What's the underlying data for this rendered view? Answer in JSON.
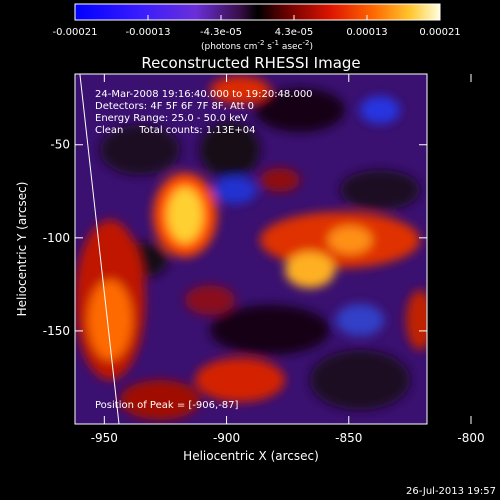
{
  "chart_data": {
    "type": "heatmap",
    "title": "Reconstructed RHESSI Image",
    "xlabel": "Heliocentric X (arcsec)",
    "ylabel": "Heliocentric Y (arcsec)",
    "xlim": [
      -962,
      -818
    ],
    "ylim": [
      -200,
      -12
    ],
    "x_ticks": [
      -950,
      -900,
      -850,
      -800
    ],
    "y_ticks": [
      -50,
      -100,
      -150
    ],
    "colorbar": {
      "min": -0.00021,
      "max": 0.00021,
      "ticks": [
        "-0.00021",
        "-0.00013",
        "-4.3e-05",
        "4.3e-05",
        "0.00013",
        "0.00021"
      ],
      "units_prefix": "(photons cm",
      "units_exp1": "-2",
      "units_mid": " s",
      "units_exp2": "-1",
      "units_mid2": " asec",
      "units_exp3": "-2",
      "units_suffix": ")"
    },
    "annotations": [
      "24-Mar-2008 19:16:40.000 to 19:20:48.000",
      "Detectors: 4F 5F 6F 7F 8F, Att 0",
      "Energy Range: 25.0 - 50.0 keV",
      "Clean     Total counts: 1.13E+04"
    ],
    "peak_label": "Position of Peak = [-906,-87]",
    "timestamp": "26-Jul-2013 19:57",
    "peak": [
      -906,
      -87
    ],
    "limb": [
      [
        -960,
        -12
      ],
      [
        -944,
        -200
      ]
    ]
  }
}
